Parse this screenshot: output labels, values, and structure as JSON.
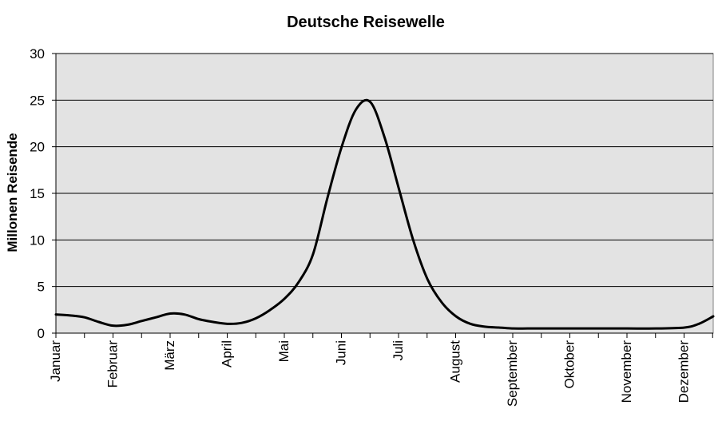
{
  "chart_data": {
    "type": "line",
    "title": "Deutsche Reisewelle",
    "ylabel": "Millonen Reisende",
    "xlabel": "",
    "ylim": [
      0,
      30
    ],
    "yticks": [
      0,
      5,
      10,
      15,
      20,
      25,
      30
    ],
    "grid": true,
    "colors": {
      "plot_background": "#e3e3e3",
      "line": "#000000",
      "grid": "#000000"
    },
    "month_labels": [
      "Januar",
      "Februar",
      "März",
      "April",
      "Mai",
      "Juni",
      "Juli",
      "August",
      "September",
      "Oktober",
      "November",
      "Dezember"
    ],
    "series": [
      {
        "x": [
          0,
          0.25,
          0.5,
          0.75,
          1.0,
          1.25,
          1.5,
          1.75,
          2.0,
          2.25,
          2.5,
          2.75,
          3.0,
          3.25,
          3.5,
          3.75,
          4.0,
          4.25,
          4.5,
          4.75,
          5.0,
          5.25,
          5.5,
          5.75,
          6.0,
          6.25,
          6.5,
          6.75,
          7.0,
          7.25,
          7.5,
          7.75,
          8.0,
          8.25,
          8.5,
          8.75,
          9.0,
          9.5,
          10.0,
          10.5,
          11.0,
          11.25,
          11.5
        ],
        "values": [
          2.0,
          1.9,
          1.7,
          1.2,
          0.8,
          0.9,
          1.3,
          1.7,
          2.1,
          2.0,
          1.5,
          1.2,
          1.0,
          1.1,
          1.6,
          2.5,
          3.7,
          5.5,
          8.5,
          14.5,
          20.0,
          24.0,
          24.8,
          21.0,
          15.5,
          10.0,
          5.8,
          3.3,
          1.8,
          1.0,
          0.7,
          0.6,
          0.5,
          0.5,
          0.5,
          0.5,
          0.5,
          0.5,
          0.5,
          0.5,
          0.6,
          1.0,
          1.8
        ]
      }
    ]
  }
}
